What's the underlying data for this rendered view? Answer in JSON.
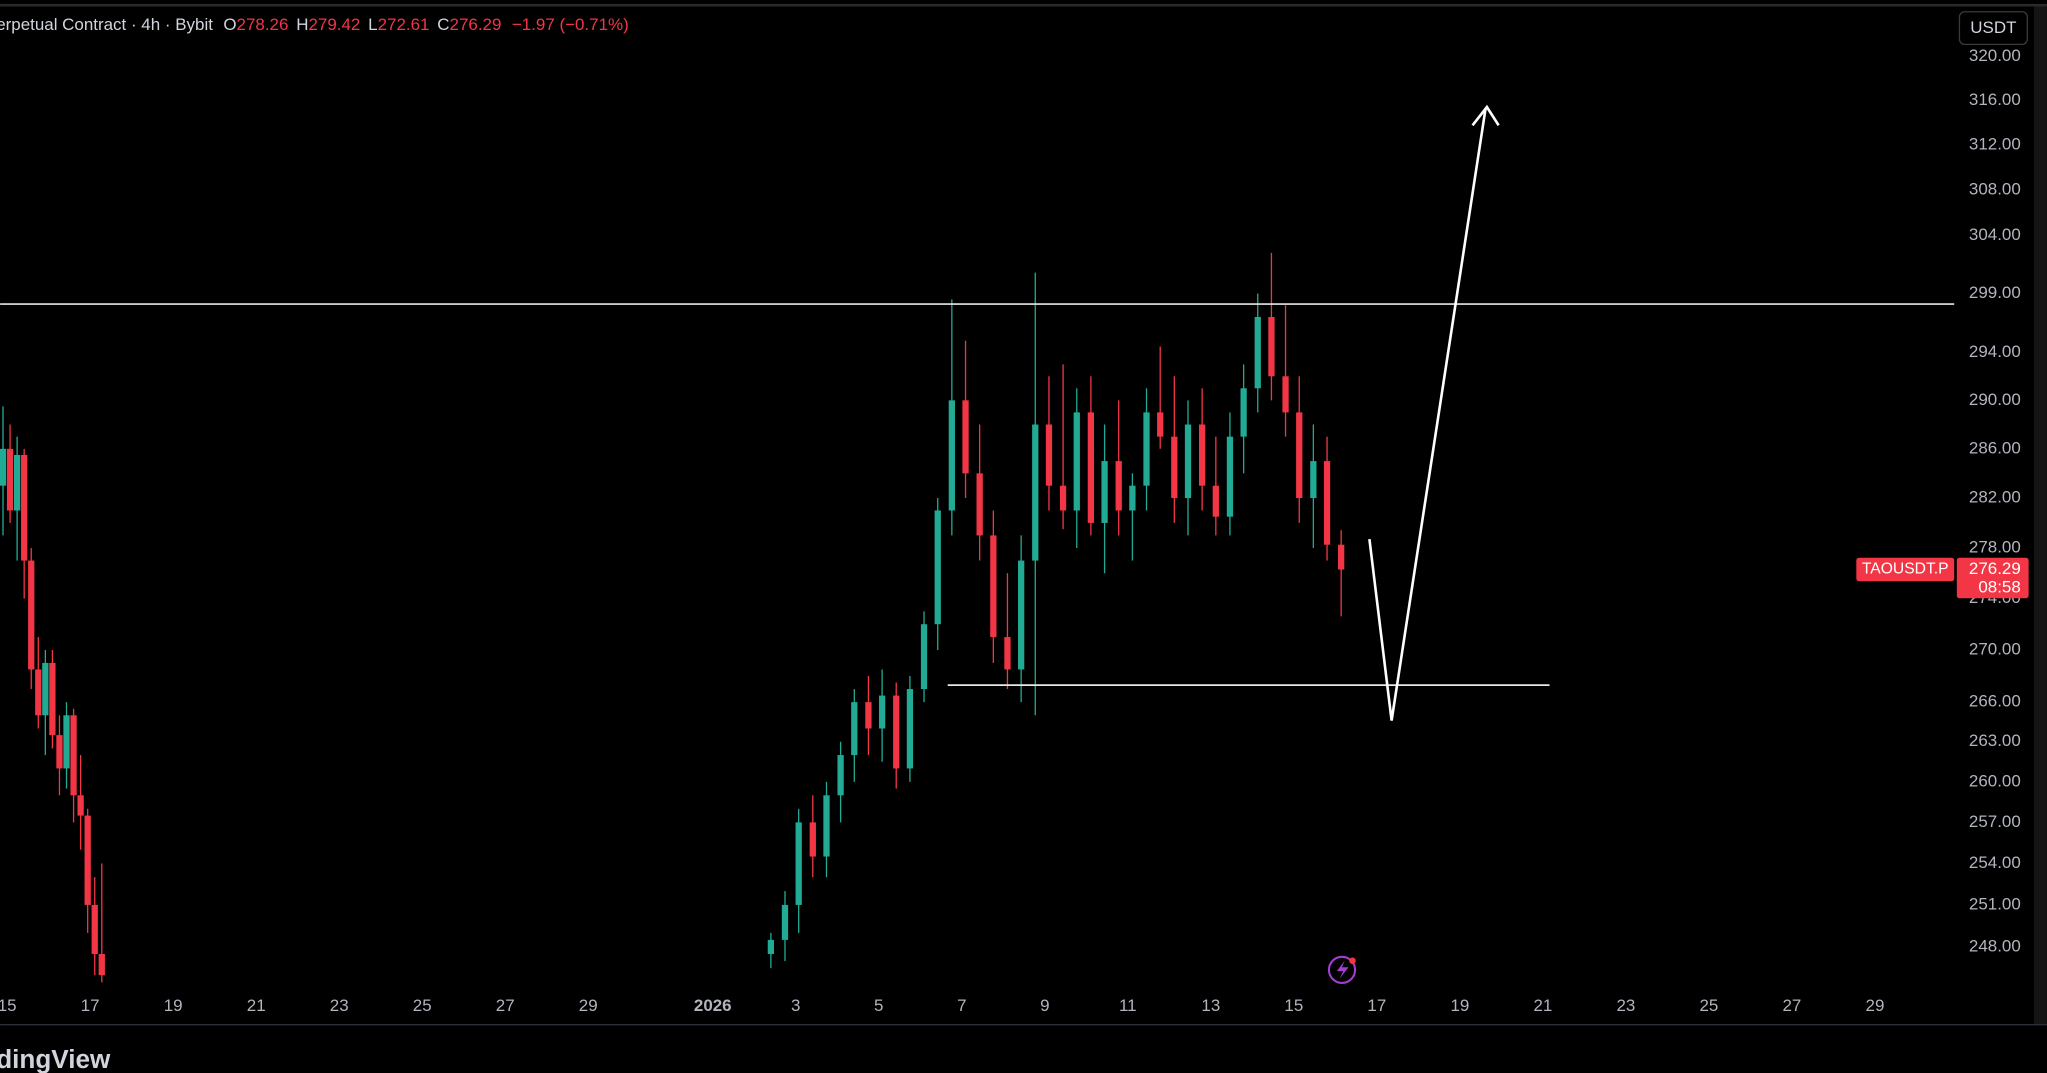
{
  "header": {
    "title": "erpetual Contract · 4h · Bybit",
    "ohlc_labels": [
      "O",
      "H",
      "L",
      "C"
    ],
    "change": "−1.97 (−0.71%)"
  },
  "currency": "USDT",
  "price_tag": {
    "symbol": "TAOUSDT.P",
    "countdown": "08:58"
  },
  "footer": "dingView",
  "chart_data": {
    "type": "candlestick",
    "log": true,
    "grid": false,
    "up_color": "#22ab94",
    "down_color": "#f23645",
    "xlim": [
      -17.17,
      29.91
    ],
    "xticks": [
      {
        "value": -17,
        "label": "15"
      },
      {
        "value": -15,
        "label": "17"
      },
      {
        "value": -13,
        "label": "19"
      },
      {
        "value": -11,
        "label": "21"
      },
      {
        "value": -9,
        "label": "23"
      },
      {
        "value": -7,
        "label": "25"
      },
      {
        "value": -5,
        "label": "27"
      },
      {
        "value": -3,
        "label": "29"
      },
      {
        "value": 0,
        "label": "2026"
      },
      {
        "value": 2,
        "label": "3"
      },
      {
        "value": 4,
        "label": "5"
      },
      {
        "value": 6,
        "label": "7"
      },
      {
        "value": 8,
        "label": "9"
      },
      {
        "value": 10,
        "label": "11"
      },
      {
        "value": 12,
        "label": "13"
      },
      {
        "value": 14,
        "label": "15"
      },
      {
        "value": 16,
        "label": "17"
      },
      {
        "value": 18,
        "label": "19"
      },
      {
        "value": 20,
        "label": "21"
      },
      {
        "value": 22,
        "label": "23"
      },
      {
        "value": 24,
        "label": "25"
      },
      {
        "value": 26,
        "label": "27"
      },
      {
        "value": 28,
        "label": "29"
      }
    ],
    "ylim": [
      245,
      324.6
    ],
    "yticks": [
      {
        "value": 320,
        "label": "320.00"
      },
      {
        "value": 316,
        "label": "316.00"
      },
      {
        "value": 312,
        "label": "312.00"
      },
      {
        "value": 308,
        "label": "308.00"
      },
      {
        "value": 304,
        "label": "304.00"
      },
      {
        "value": 299,
        "label": "299.00"
      },
      {
        "value": 294,
        "label": "294.00"
      },
      {
        "value": 290,
        "label": "290.00"
      },
      {
        "value": 286,
        "label": "286.00"
      },
      {
        "value": 282,
        "label": "282.00"
      },
      {
        "value": 278,
        "label": "278.00"
      },
      {
        "value": 274,
        "label": "274.00"
      },
      {
        "value": 270,
        "label": "270.00"
      },
      {
        "value": 266,
        "label": "266.00"
      },
      {
        "value": 263,
        "label": "263.00"
      },
      {
        "value": 260,
        "label": "260.00"
      },
      {
        "value": 257,
        "label": "257.00"
      },
      {
        "value": 254,
        "label": "254.00"
      },
      {
        "value": 251,
        "label": "251.00"
      },
      {
        "value": 248,
        "label": "248.00"
      }
    ],
    "x": [
      -17.1,
      -16.93,
      -16.76,
      -16.59,
      -16.42,
      -16.25,
      -16.08,
      -15.91,
      -15.74,
      -15.57,
      -15.4,
      -15.23,
      -15.06,
      -14.89,
      -14.72,
      1.4,
      1.74,
      2.07,
      2.41,
      2.74,
      3.08,
      3.41,
      3.75,
      4.08,
      4.42,
      4.75,
      5.09,
      5.42,
      5.76,
      6.09,
      6.43,
      6.76,
      7.1,
      7.43,
      7.77,
      8.1,
      8.44,
      8.77,
      9.11,
      9.44,
      9.78,
      10.11,
      10.45,
      10.78,
      11.12,
      11.45,
      11.79,
      12.12,
      12.46,
      12.79,
      13.13,
      13.46,
      13.8,
      14.13,
      14.47,
      14.8,
      15.14
    ],
    "open": [
      283,
      286,
      281,
      285.5,
      277,
      268.5,
      265,
      269,
      263.5,
      261,
      265,
      259,
      257.5,
      251,
      247.5,
      247.5,
      248.5,
      251,
      257,
      254.5,
      259,
      262,
      266,
      264,
      266.5,
      261,
      267,
      272,
      281,
      290,
      284,
      279,
      271,
      268.5,
      277,
      288,
      283,
      281,
      289,
      280,
      285,
      281,
      283,
      289,
      287,
      282,
      288,
      283,
      280.5,
      287,
      291,
      297,
      292,
      289,
      282,
      285,
      278.26
    ],
    "high": [
      289.5,
      288,
      287,
      286,
      278,
      271,
      270,
      270,
      265,
      266,
      265.5,
      262,
      258,
      253,
      254,
      249,
      252,
      258,
      259,
      260,
      263,
      267,
      268,
      268.5,
      267.5,
      268,
      273,
      282,
      298.5,
      295,
      288,
      281,
      276,
      279,
      300.8,
      292,
      293,
      291,
      292,
      288,
      290,
      284,
      291,
      294.5,
      292,
      290,
      291,
      287,
      289,
      293,
      299,
      302.5,
      298,
      292,
      288,
      287,
      279.42
    ],
    "low": [
      279,
      280,
      277,
      274,
      267,
      264,
      262,
      262.5,
      259,
      259.5,
      257,
      255,
      249,
      246,
      245.5,
      246.5,
      247,
      249,
      253,
      253,
      257,
      260,
      262,
      261.5,
      259.5,
      260,
      266,
      270,
      279,
      282,
      277,
      269,
      267,
      266,
      265,
      281,
      279.5,
      278,
      279,
      276,
      279,
      277,
      281,
      286,
      280,
      279,
      281,
      279,
      279,
      284,
      289,
      290,
      287,
      280,
      278,
      277,
      272.61
    ],
    "close": [
      286,
      281,
      285.5,
      277,
      268.5,
      265,
      269,
      263.5,
      261,
      265,
      259,
      257.5,
      251,
      247.5,
      246,
      248.5,
      251,
      257,
      254.5,
      259,
      262,
      266,
      264,
      266.5,
      261,
      267,
      272,
      281,
      290,
      284,
      279,
      271,
      268.5,
      277,
      288,
      283,
      281,
      289,
      280,
      285,
      281,
      283,
      289,
      287,
      282,
      288,
      283,
      280.5,
      287,
      291,
      297,
      292,
      289,
      282,
      285,
      278.26,
      276.29
    ],
    "levels": [
      {
        "price": 298.1,
        "from": -17.17,
        "to": 29.91
      },
      {
        "price": 267.3,
        "from": 5.66,
        "to": 20.16
      }
    ]
  }
}
